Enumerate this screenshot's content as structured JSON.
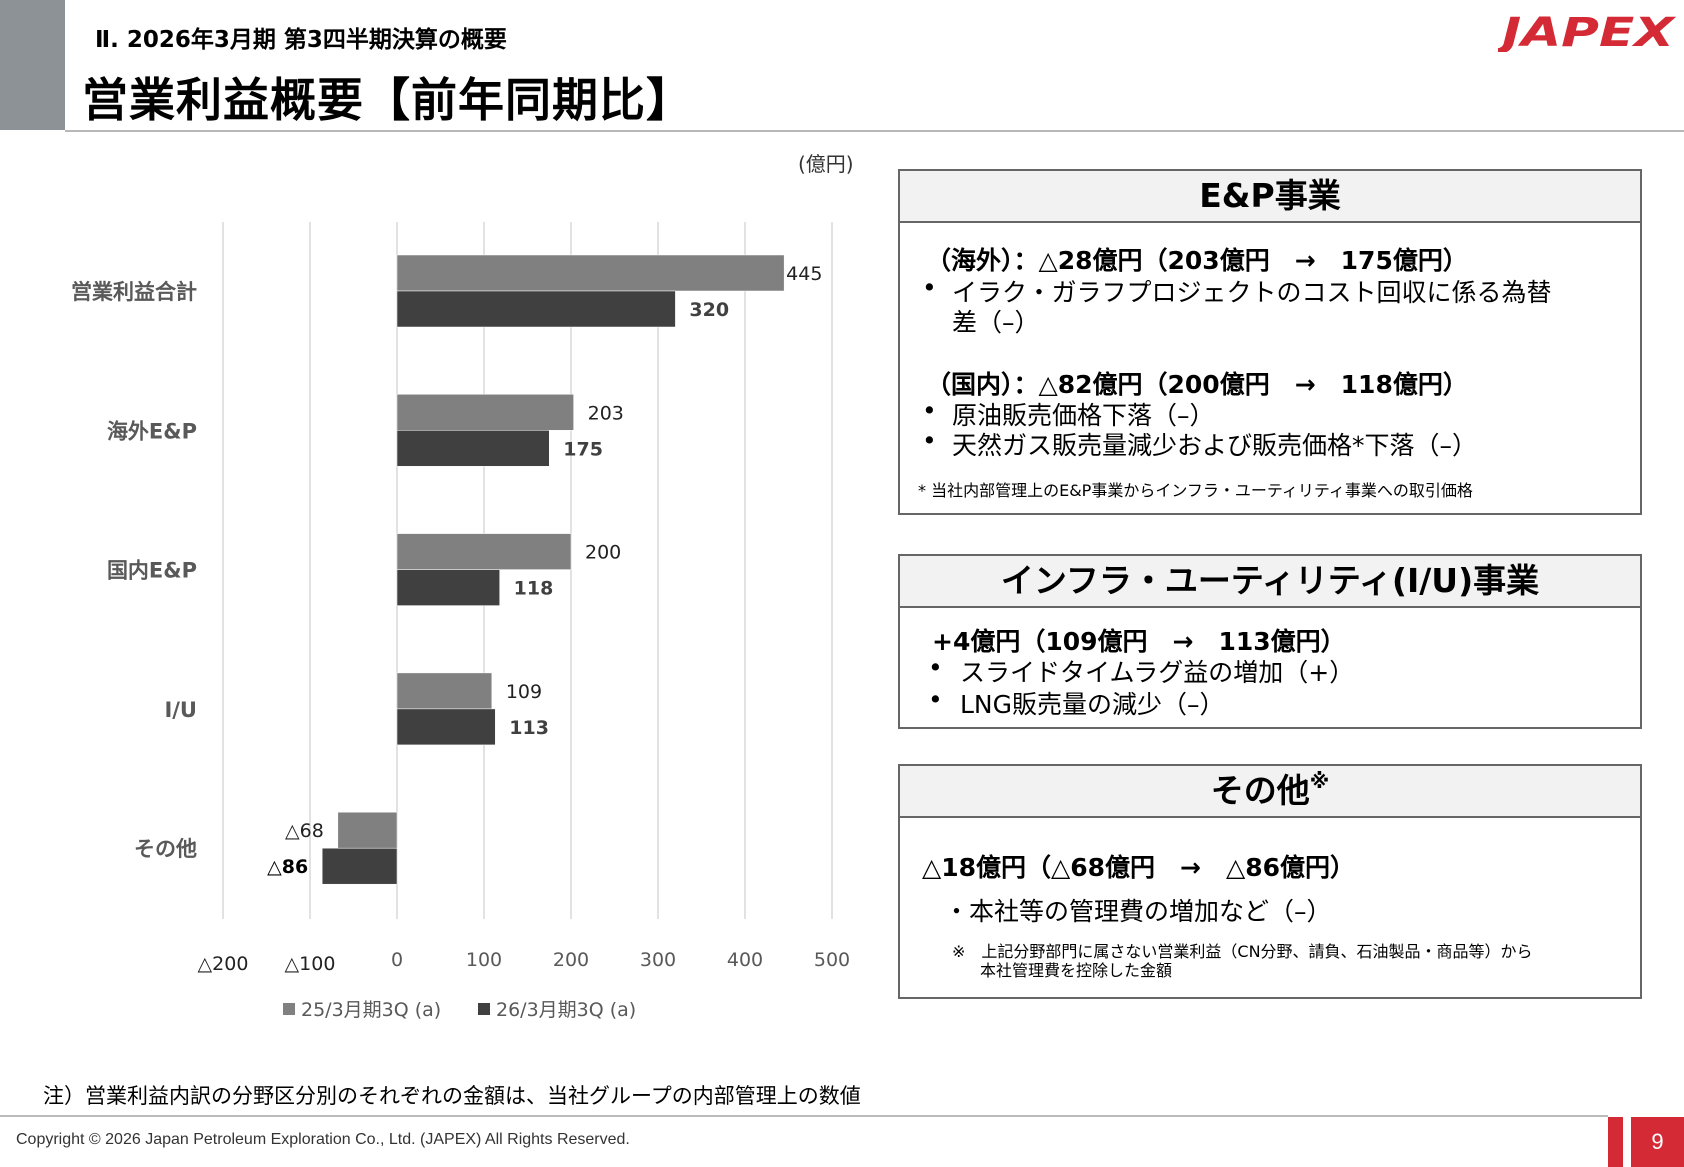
{
  "header": {
    "subtitle": "Ⅱ. 2026年3月期 第3四半期決算の概要",
    "title": "営業利益概要【前年同期比】",
    "logo_text": "JAPEX",
    "brand_color": "#d42a36"
  },
  "chart_unit": "(億円)",
  "chart_data": {
    "type": "bar",
    "orientation": "horizontal",
    "categories": [
      "営業利益合計",
      "海外E&P",
      "国内E&P",
      "I/U",
      "その他"
    ],
    "series": [
      {
        "name": "25/3月期3Q (a)",
        "values": [
          445,
          203,
          200,
          109,
          -68
        ],
        "labels": [
          "445",
          "203",
          "200",
          "109",
          "△68"
        ],
        "color": "#808080"
      },
      {
        "name": "26/3月期3Q (a)",
        "values": [
          320,
          175,
          118,
          113,
          -86
        ],
        "labels": [
          "320",
          "175",
          "118",
          "113",
          "△86"
        ],
        "color": "#404040"
      }
    ],
    "xlim": [
      -200,
      500
    ],
    "xticks": [
      -200,
      -100,
      0,
      100,
      200,
      300,
      400,
      500
    ],
    "xtick_labels": [
      "△200",
      "△100",
      "0",
      "100",
      "200",
      "300",
      "400",
      "500"
    ],
    "grid": true,
    "legend": "bottom"
  },
  "ep": {
    "title": "E&P事業",
    "overseas_head": "（海外）：△28億円（203億円　→　175億円）",
    "overseas_b1a": "イラク・ガラフプロジェクトのコスト回収に係る為替",
    "overseas_b1b": "差（–）",
    "domestic_head": "（国内）：△82億円（200億円　→　118億円）",
    "domestic_b1": "原油販売価格下落（–）",
    "domestic_b2": "天然ガス販売量減少および販売価格*下落（–）",
    "footnote": "* 当社内部管理上のE&P事業からインフラ・ユーティリティ事業への取引価格"
  },
  "iu": {
    "title": "インフラ・ユーティリティ(I/U)事業",
    "head": "+4億円（109億円　→　113億円）",
    "b1": "スライドタイムラグ益の増加（+）",
    "b2": "LNG販売量の減少（–）"
  },
  "other": {
    "title": "その他",
    "title_mark": "※",
    "head": "△18億円（△68億円　→　△86億円）",
    "b1": "・本社等の管理費の増加など（–）",
    "fn1": "※　上記分野部門に属さない営業利益（CN分野、請負、石油製品・商品等）から",
    "fn2": "本社管理費を控除した金額"
  },
  "bullet": "•",
  "footer": {
    "note": "注）営業利益内訳の分野区分別のそれぞれの金額は、当社グループの内部管理上の数値",
    "copyright": "Copyright © 2026 Japan Petroleum Exploration Co., Ltd. (JAPEX) All Rights Reserved.",
    "page": "9"
  }
}
